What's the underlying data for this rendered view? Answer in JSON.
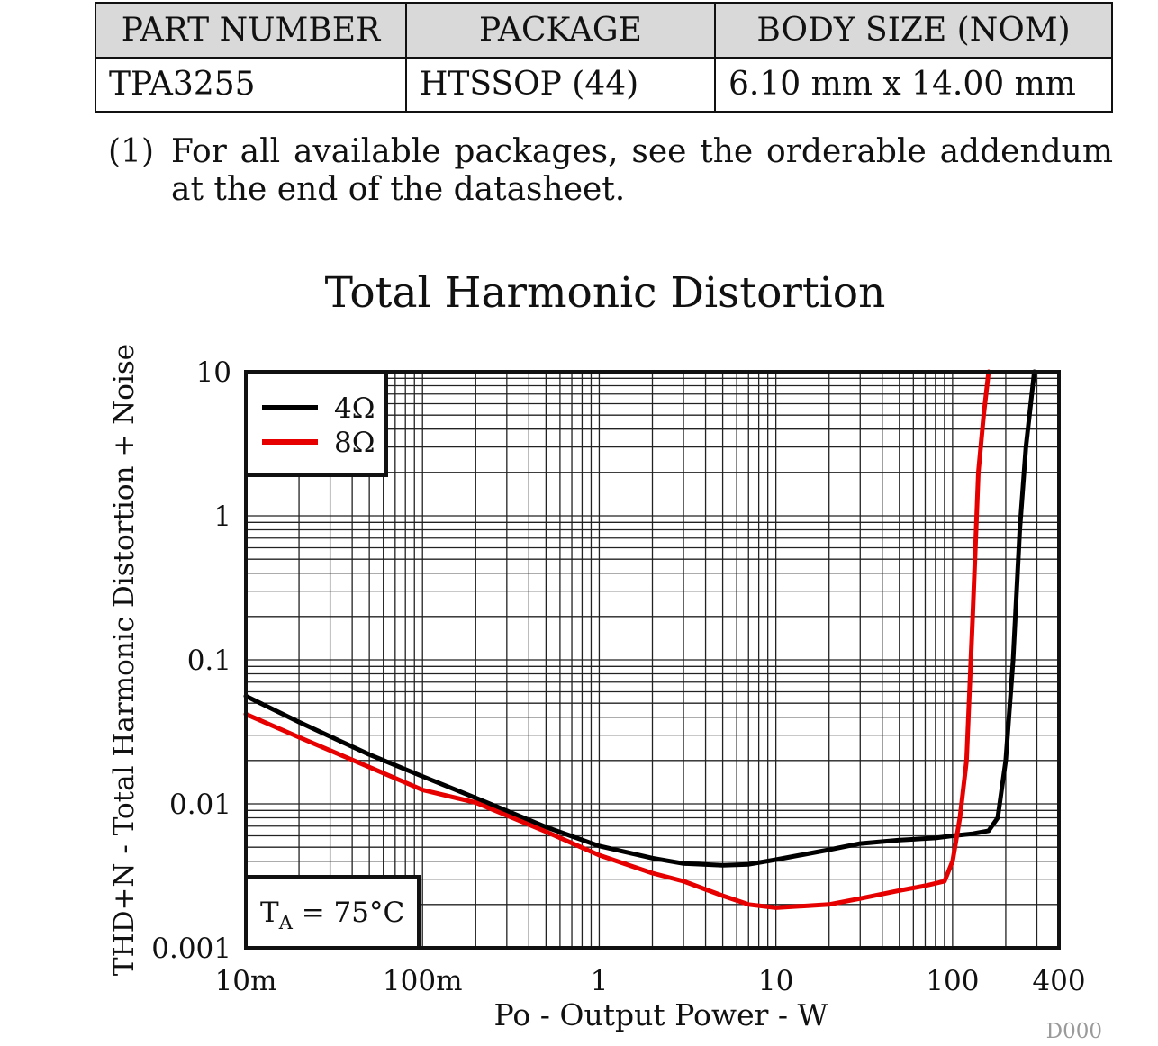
{
  "table": {
    "headers": [
      "PART NUMBER",
      "PACKAGE",
      "BODY SIZE (NOM)"
    ],
    "rows": [
      [
        "TPA3255",
        "HTSSOP (44)",
        "6.10 mm x 14.00 mm"
      ]
    ]
  },
  "footnote": {
    "number": "(1)",
    "text": "For all available packages, see the orderable addendum at the end of the datasheet."
  },
  "chart_data": {
    "type": "line",
    "title": "Total Harmonic Distortion",
    "xlabel": "Po - Output Power - W",
    "ylabel": "THD+N - Total Harmonic Distortion + Noise",
    "x_scale": "log",
    "y_scale": "log",
    "xlim": [
      0.01,
      400
    ],
    "ylim": [
      0.001,
      10
    ],
    "x_ticks": [
      {
        "value": 0.01,
        "label": "10m"
      },
      {
        "value": 0.1,
        "label": "100m"
      },
      {
        "value": 1,
        "label": "1"
      },
      {
        "value": 10,
        "label": "10"
      },
      {
        "value": 100,
        "label": "100"
      },
      {
        "value": 400,
        "label": "400"
      }
    ],
    "y_ticks": [
      {
        "value": 10,
        "label": "10"
      },
      {
        "value": 1,
        "label": "1"
      },
      {
        "value": 0.1,
        "label": "0.1"
      },
      {
        "value": 0.01,
        "label": "0.01"
      },
      {
        "value": 0.001,
        "label": "0.001"
      }
    ],
    "grid": true,
    "legend_position": "top-left",
    "annotation": {
      "main": "T",
      "sub": "A",
      "rest": " = 75°C"
    },
    "figure_id": "D000",
    "series": [
      {
        "name": "4Ω",
        "color": "#000000",
        "points": [
          [
            0.01,
            0.056
          ],
          [
            0.02,
            0.037
          ],
          [
            0.05,
            0.022
          ],
          [
            0.1,
            0.0155
          ],
          [
            0.2,
            0.011
          ],
          [
            0.5,
            0.0069
          ],
          [
            1,
            0.0051
          ],
          [
            2,
            0.0042
          ],
          [
            3,
            0.00385
          ],
          [
            5,
            0.00375
          ],
          [
            7,
            0.0038
          ],
          [
            10,
            0.0041
          ],
          [
            20,
            0.0048
          ],
          [
            30,
            0.0053
          ],
          [
            50,
            0.0056
          ],
          [
            80,
            0.0058
          ],
          [
            100,
            0.006
          ],
          [
            130,
            0.0062
          ],
          [
            160,
            0.0065
          ],
          [
            180,
            0.008
          ],
          [
            200,
            0.02
          ],
          [
            220,
            0.1
          ],
          [
            240,
            0.8
          ],
          [
            260,
            3
          ],
          [
            290,
            10
          ]
        ]
      },
      {
        "name": "8Ω",
        "color": "#e60000",
        "points": [
          [
            0.01,
            0.042
          ],
          [
            0.02,
            0.029
          ],
          [
            0.05,
            0.018
          ],
          [
            0.1,
            0.0125
          ],
          [
            0.2,
            0.0102
          ],
          [
            0.5,
            0.0064
          ],
          [
            1,
            0.0044
          ],
          [
            2,
            0.0033
          ],
          [
            3,
            0.0029
          ],
          [
            5,
            0.0023
          ],
          [
            7,
            0.002
          ],
          [
            10,
            0.0019
          ],
          [
            20,
            0.002
          ],
          [
            30,
            0.0022
          ],
          [
            50,
            0.0025
          ],
          [
            70,
            0.0027
          ],
          [
            90,
            0.0029
          ],
          [
            100,
            0.004
          ],
          [
            110,
            0.008
          ],
          [
            120,
            0.02
          ],
          [
            130,
            0.2
          ],
          [
            140,
            2
          ],
          [
            150,
            5
          ],
          [
            160,
            10
          ]
        ]
      }
    ]
  }
}
